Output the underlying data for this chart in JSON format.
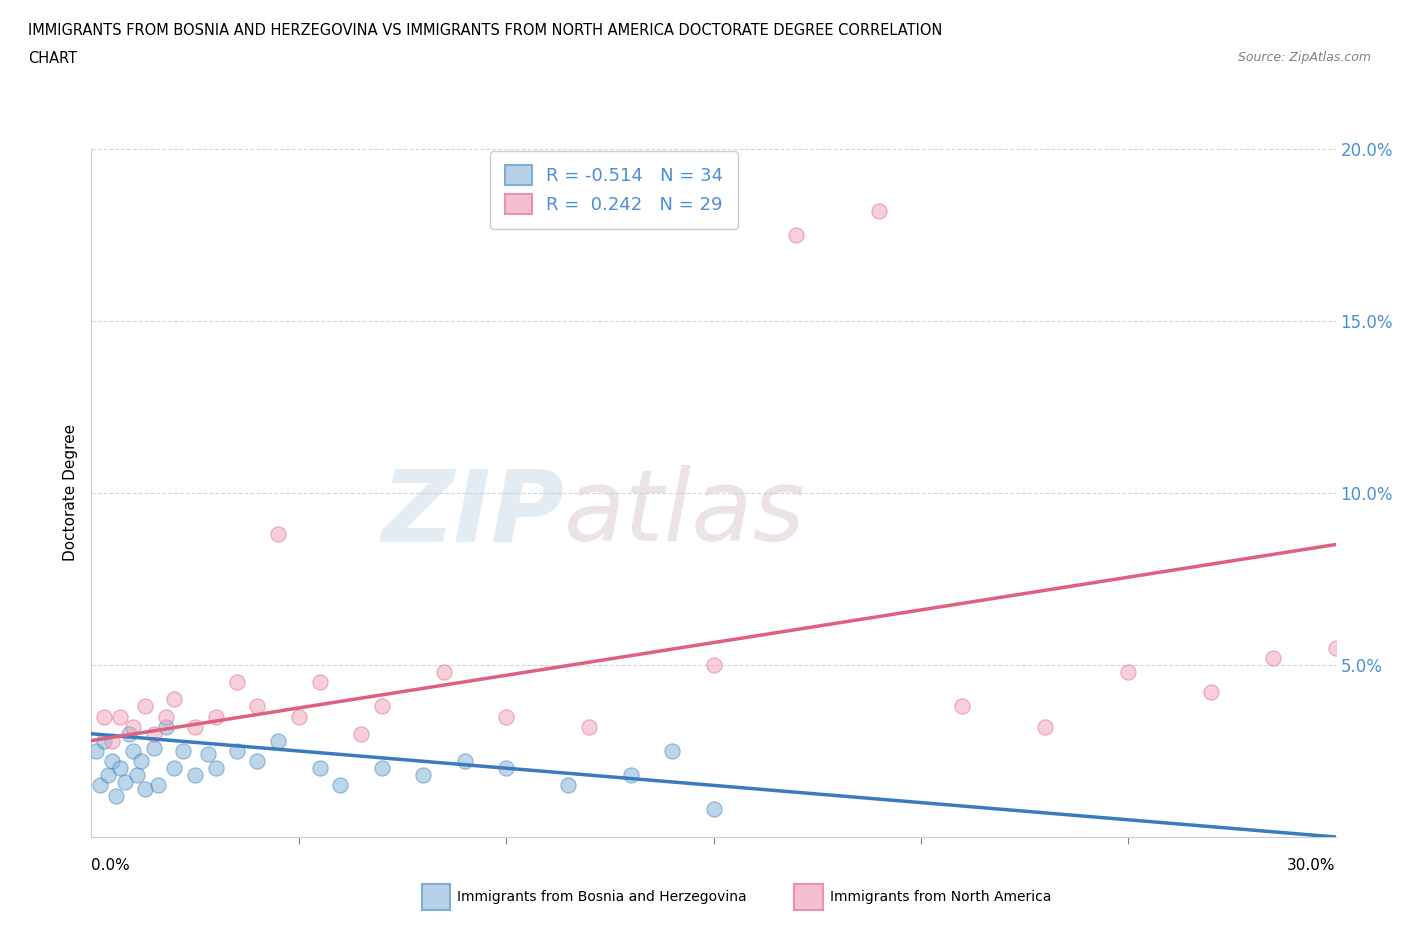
{
  "title_line1": "IMMIGRANTS FROM BOSNIA AND HERZEGOVINA VS IMMIGRANTS FROM NORTH AMERICA DOCTORATE DEGREE CORRELATION",
  "title_line2": "CHART",
  "source_text": "Source: ZipAtlas.com",
  "R_blue": -0.514,
  "N_blue": 34,
  "R_pink": 0.242,
  "N_pink": 29,
  "y_label": "Doctorate Degree",
  "legend_blue": "Immigrants from Bosnia and Herzegovina",
  "legend_pink": "Immigrants from North America",
  "xlim": [
    0.0,
    30.0
  ],
  "ylim": [
    0.0,
    20.0
  ],
  "watermark_zip": "ZIP",
  "watermark_atlas": "atlas",
  "blue_scatter_color": "#7bafd4",
  "blue_line_color": "#3a7abf",
  "pink_scatter_color": "#f0a0b8",
  "pink_line_color": "#e06080",
  "blue_scatter_x": [
    0.1,
    0.2,
    0.3,
    0.4,
    0.5,
    0.6,
    0.7,
    0.8,
    0.9,
    1.0,
    1.1,
    1.2,
    1.3,
    1.5,
    1.6,
    1.8,
    2.0,
    2.2,
    2.5,
    2.8,
    3.0,
    3.5,
    4.0,
    4.5,
    5.5,
    6.0,
    7.0,
    8.0,
    9.0,
    10.0,
    11.5,
    13.0,
    14.0,
    15.0
  ],
  "blue_scatter_y": [
    2.5,
    1.5,
    2.8,
    1.8,
    2.2,
    1.2,
    2.0,
    1.6,
    3.0,
    2.5,
    1.8,
    2.2,
    1.4,
    2.6,
    1.5,
    3.2,
    2.0,
    2.5,
    1.8,
    2.4,
    2.0,
    2.5,
    2.2,
    2.8,
    2.0,
    1.5,
    2.0,
    1.8,
    2.2,
    2.0,
    1.5,
    1.8,
    2.5,
    0.8
  ],
  "pink_scatter_x": [
    0.3,
    0.5,
    0.7,
    1.0,
    1.3,
    1.5,
    1.8,
    2.0,
    2.5,
    3.0,
    3.5,
    4.0,
    4.5,
    5.0,
    5.5,
    6.5,
    7.0,
    8.5,
    10.0,
    12.0,
    15.0,
    17.0,
    19.0,
    21.0,
    23.0,
    25.0,
    27.0,
    28.5,
    30.0
  ],
  "pink_scatter_y": [
    3.5,
    2.8,
    3.5,
    3.2,
    3.8,
    3.0,
    3.5,
    4.0,
    3.2,
    3.5,
    4.5,
    3.8,
    8.8,
    3.5,
    4.5,
    3.0,
    3.8,
    4.8,
    3.5,
    3.2,
    5.0,
    17.5,
    18.2,
    3.8,
    3.2,
    4.8,
    4.2,
    5.2,
    5.5
  ],
  "blue_line_x": [
    0,
    30
  ],
  "blue_line_y": [
    3.0,
    0.0
  ],
  "pink_line_x": [
    0,
    30
  ],
  "pink_line_y": [
    2.8,
    8.5
  ]
}
